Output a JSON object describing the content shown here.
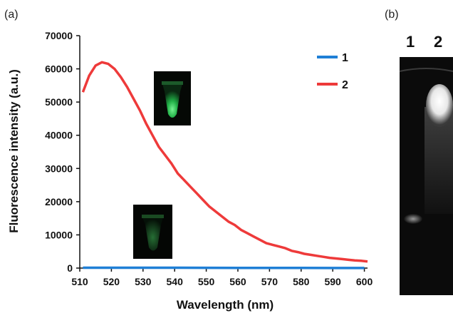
{
  "panels": {
    "a_label": "(a)",
    "b_label": "(b)"
  },
  "chart_data": {
    "type": "line",
    "title": "",
    "xlabel": "Wavelength (nm)",
    "ylabel": "Fluorescence intensity (a.u.)",
    "xlim": [
      510,
      601
    ],
    "ylim": [
      0,
      70000
    ],
    "x_ticks": [
      "510",
      "520",
      "530",
      "540",
      "550",
      "560",
      "570",
      "580",
      "590",
      "600"
    ],
    "y_ticks": [
      "0",
      "10000",
      "20000",
      "30000",
      "40000",
      "50000",
      "60000",
      "70000"
    ],
    "grid": false,
    "legend_position": "top-right",
    "series": [
      {
        "name": "1",
        "color": "#1f7fd6",
        "x": [
          511,
          520,
          530,
          540,
          550,
          560,
          570,
          580,
          590,
          600
        ],
        "y": [
          100,
          100,
          100,
          100,
          80,
          60,
          50,
          40,
          30,
          30
        ]
      },
      {
        "name": "2",
        "color": "#ee3a3a",
        "x": [
          511,
          513,
          515,
          517,
          519,
          521,
          523,
          525,
          527,
          529,
          531,
          533,
          535,
          537,
          539,
          541,
          543,
          545,
          547,
          549,
          551,
          553,
          555,
          557,
          559,
          561,
          563,
          565,
          567,
          569,
          571,
          573,
          575,
          577,
          579,
          581,
          583,
          585,
          587,
          589,
          591,
          593,
          595,
          597,
          599,
          601
        ],
        "y": [
          53000,
          58000,
          61000,
          62000,
          61500,
          60000,
          57500,
          54500,
          51000,
          47500,
          43500,
          40000,
          36500,
          34000,
          31500,
          28500,
          26500,
          24500,
          22500,
          20500,
          18500,
          17000,
          15500,
          14000,
          13000,
          11500,
          10500,
          9500,
          8500,
          7500,
          7000,
          6500,
          6000,
          5200,
          4800,
          4300,
          4000,
          3700,
          3400,
          3100,
          2900,
          2700,
          2500,
          2300,
          2200,
          2000
        ]
      }
    ]
  },
  "gel": {
    "lane_labels": [
      "1",
      "2"
    ]
  }
}
